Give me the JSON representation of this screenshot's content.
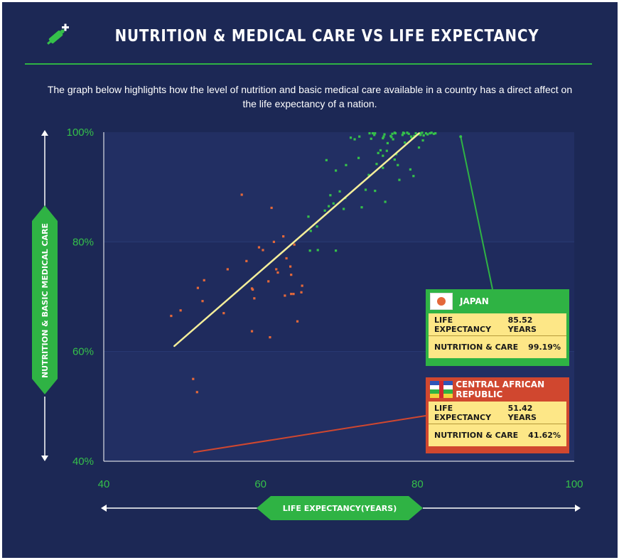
{
  "header": {
    "title": "NUTRITION & MEDICAL CARE VS LIFE EXPECTANCY",
    "icon": "syringe-plus-icon",
    "subtitle": "The graph below highlights how the level of nutrition and basic medical care available in a country has a direct affect on the life expectancy of a nation."
  },
  "colors": {
    "background": "#1c2855",
    "accent_green": "#2fb344",
    "point_orange": "#e4683a",
    "point_green": "#35c04a",
    "trend_yellow": "#f4ee9a",
    "callout_red": "#d0472f",
    "callout_yellow": "#fde787"
  },
  "chart_data": {
    "type": "scatter",
    "xlabel": "LIFE EXPECTANCY(YEARS)",
    "ylabel": "NUTRITION & BASIC MEDICAL CARE",
    "xlim": [
      40,
      100
    ],
    "ylim": [
      40,
      100
    ],
    "x_ticks": [
      "40",
      "60",
      "80",
      "100"
    ],
    "y_ticks": [
      "100%",
      "80%",
      "60%",
      "40%"
    ],
    "grid": "horizontal bands",
    "trendline": {
      "from": [
        49,
        61
      ],
      "to": [
        80.2,
        99.8
      ]
    },
    "series": [
      {
        "color": "orange",
        "points": [
          [
            48.6,
            66.5
          ],
          [
            49.8,
            67.5
          ],
          [
            51.4,
            55
          ],
          [
            51.9,
            52.6
          ],
          [
            52,
            71.6
          ],
          [
            52.8,
            73
          ],
          [
            52.6,
            69.2
          ],
          [
            55.3,
            67
          ],
          [
            55.8,
            75
          ],
          [
            57.6,
            88.6
          ],
          [
            58.2,
            76.5
          ],
          [
            58.9,
            71.5
          ],
          [
            59,
            71.3
          ],
          [
            59.2,
            69.7
          ],
          [
            58.9,
            63.7
          ],
          [
            59.8,
            79
          ],
          [
            60.3,
            78.5
          ],
          [
            61,
            72.8
          ],
          [
            61.2,
            62.6
          ],
          [
            61.4,
            86.2
          ],
          [
            61.7,
            80
          ],
          [
            62,
            75
          ],
          [
            62.2,
            74.4
          ],
          [
            62.9,
            81
          ],
          [
            63.1,
            70.2
          ],
          [
            63.3,
            77
          ],
          [
            63.8,
            75.5
          ],
          [
            63.9,
            74
          ],
          [
            63.9,
            70.5
          ],
          [
            64.7,
            65.5
          ],
          [
            64.2,
            70.5
          ],
          [
            64.3,
            79.5
          ],
          [
            65.2,
            70.8
          ],
          [
            65.3,
            72
          ]
        ]
      },
      {
        "color": "green",
        "points": [
          [
            66.3,
            78.4
          ],
          [
            66.1,
            84.6
          ],
          [
            66.4,
            82
          ],
          [
            67.2,
            82.8
          ],
          [
            67.3,
            78.5
          ],
          [
            68.2,
            85.7
          ],
          [
            68.7,
            86.5
          ],
          [
            68.4,
            94.9
          ],
          [
            68.9,
            88.5
          ],
          [
            69.3,
            87
          ],
          [
            69.6,
            78.4
          ],
          [
            69.6,
            93
          ],
          [
            70.1,
            89.2
          ],
          [
            70.6,
            86
          ],
          [
            70.8,
            88
          ],
          [
            70.9,
            94
          ],
          [
            71.5,
            99
          ],
          [
            72,
            98.7
          ],
          [
            72.6,
            99.2
          ],
          [
            72.5,
            95.3
          ],
          [
            72.9,
            86.3
          ],
          [
            73.8,
            92.2
          ],
          [
            73.4,
            89.5
          ],
          [
            74.3,
            99.8
          ],
          [
            74.5,
            99.5
          ],
          [
            74.6,
            99.8
          ],
          [
            75.3,
            96.7
          ],
          [
            75.6,
            98.9
          ],
          [
            75.7,
            99.2
          ],
          [
            75.8,
            99.6
          ],
          [
            75.6,
            95.7
          ],
          [
            75.6,
            93.5
          ],
          [
            76.2,
            98
          ],
          [
            76.6,
            99.3
          ],
          [
            76.8,
            99.7
          ],
          [
            77.1,
            99.9
          ],
          [
            77.2,
            99.8
          ],
          [
            77.1,
            95
          ],
          [
            77.5,
            94
          ],
          [
            77.7,
            91.3
          ],
          [
            78.1,
            99.5
          ],
          [
            78.3,
            99.8
          ],
          [
            78.7,
            99.9
          ],
          [
            78.9,
            99.7
          ],
          [
            79.1,
            93.2
          ],
          [
            79.2,
            99.2
          ],
          [
            79.3,
            98.9
          ],
          [
            79.5,
            92
          ],
          [
            79.6,
            99.3
          ],
          [
            79.8,
            99.8
          ],
          [
            80.1,
            99.6
          ],
          [
            80.3,
            99.8
          ],
          [
            80.4,
            99.5
          ],
          [
            80.6,
            99.9
          ],
          [
            80.8,
            99.4
          ],
          [
            81.1,
            99.8
          ],
          [
            81.3,
            99.6
          ],
          [
            81.6,
            99.8
          ],
          [
            81.8,
            99.9
          ],
          [
            82.1,
            99.7
          ],
          [
            82.3,
            99.8
          ],
          [
            80.2,
            97.2
          ],
          [
            80.7,
            98.5
          ],
          [
            78.4,
            98.1
          ],
          [
            77.3,
            96
          ],
          [
            76.1,
            96.6
          ],
          [
            74.8,
            94.2
          ],
          [
            75,
            96.2
          ],
          [
            75.9,
            87.3
          ],
          [
            74.6,
            89.3
          ],
          [
            76.7,
            99.1
          ],
          [
            73.9,
            99.8
          ],
          [
            74.1,
            98.8
          ],
          [
            78.2,
            99.9
          ],
          [
            76.9,
            98.7
          ]
        ]
      }
    ],
    "annotations": [
      {
        "country": "JAPAN",
        "point": [
          85.52,
          99.19
        ],
        "rows": [
          {
            "label": "LIFE EXPECTANCY",
            "value": "85.52 YEARS"
          },
          {
            "label": "NUTRITION & CARE",
            "value": "99.19%"
          }
        ]
      },
      {
        "country": "CENTRAL AFRICAN REPUBLIC",
        "point": [
          51.42,
          41.62
        ],
        "rows": [
          {
            "label": "LIFE EXPECTANCY",
            "value": "51.42 YEARS"
          },
          {
            "label": "NUTRITION  & CARE",
            "value": "41.62%"
          }
        ]
      }
    ]
  }
}
